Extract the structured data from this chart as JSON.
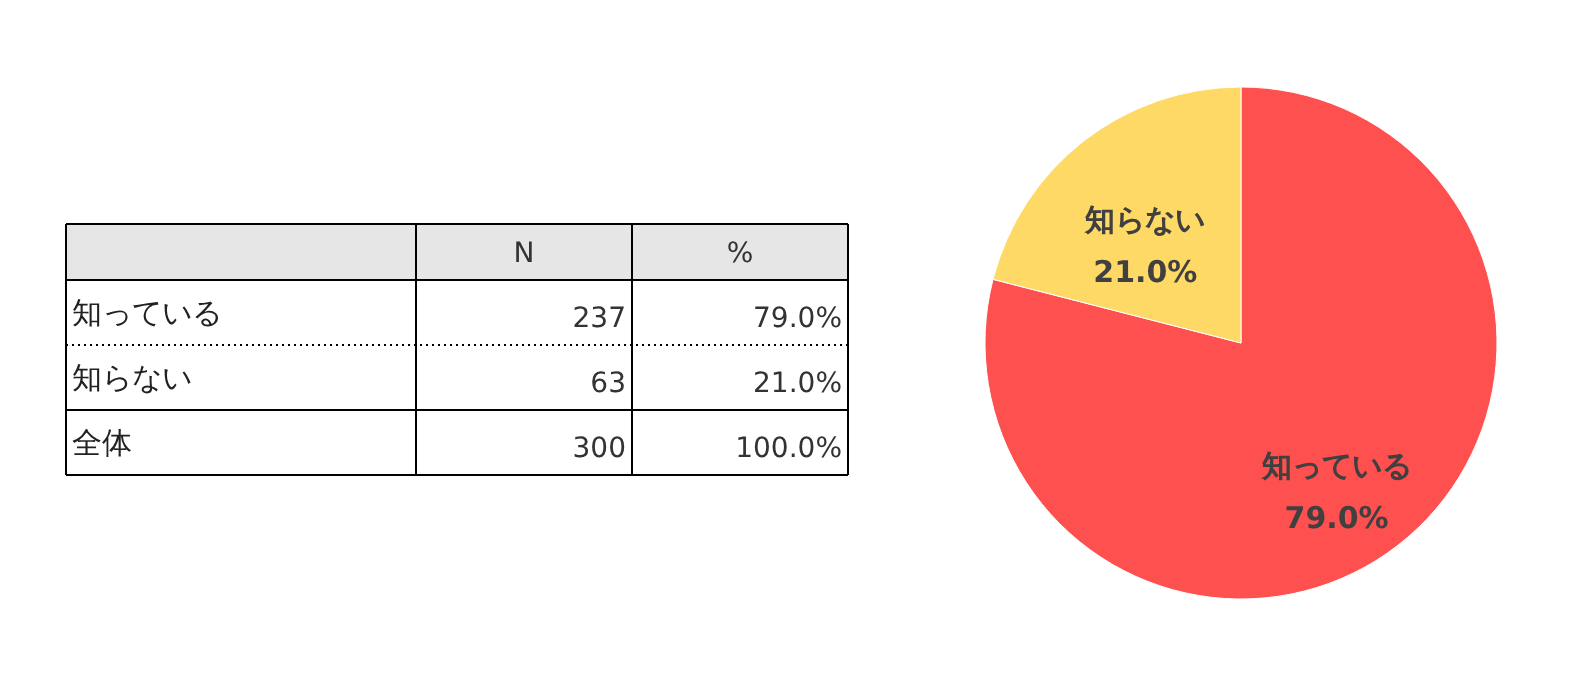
{
  "chart_data": [
    {
      "type": "other",
      "categories": [
        "知っている",
        "知らない",
        "全体"
      ],
      "data_labels": true,
      "series": [
        {
          "name": "N",
          "values": [
            237,
            63,
            300
          ]
        },
        {
          "name": "%",
          "values": [
            79.0,
            21.0,
            100.0
          ],
          "value_labels": [
            "79.0%",
            "21.0%",
            "100.0%"
          ]
        }
      ]
    },
    {
      "type": "pie",
      "categories": [
        "知っている",
        "知らない"
      ],
      "values": [
        79.0,
        21.0
      ],
      "colors": [
        "#ff5050",
        "#ffd966"
      ],
      "value_labels": [
        "79.0%",
        "21.0%"
      ]
    }
  ]
}
